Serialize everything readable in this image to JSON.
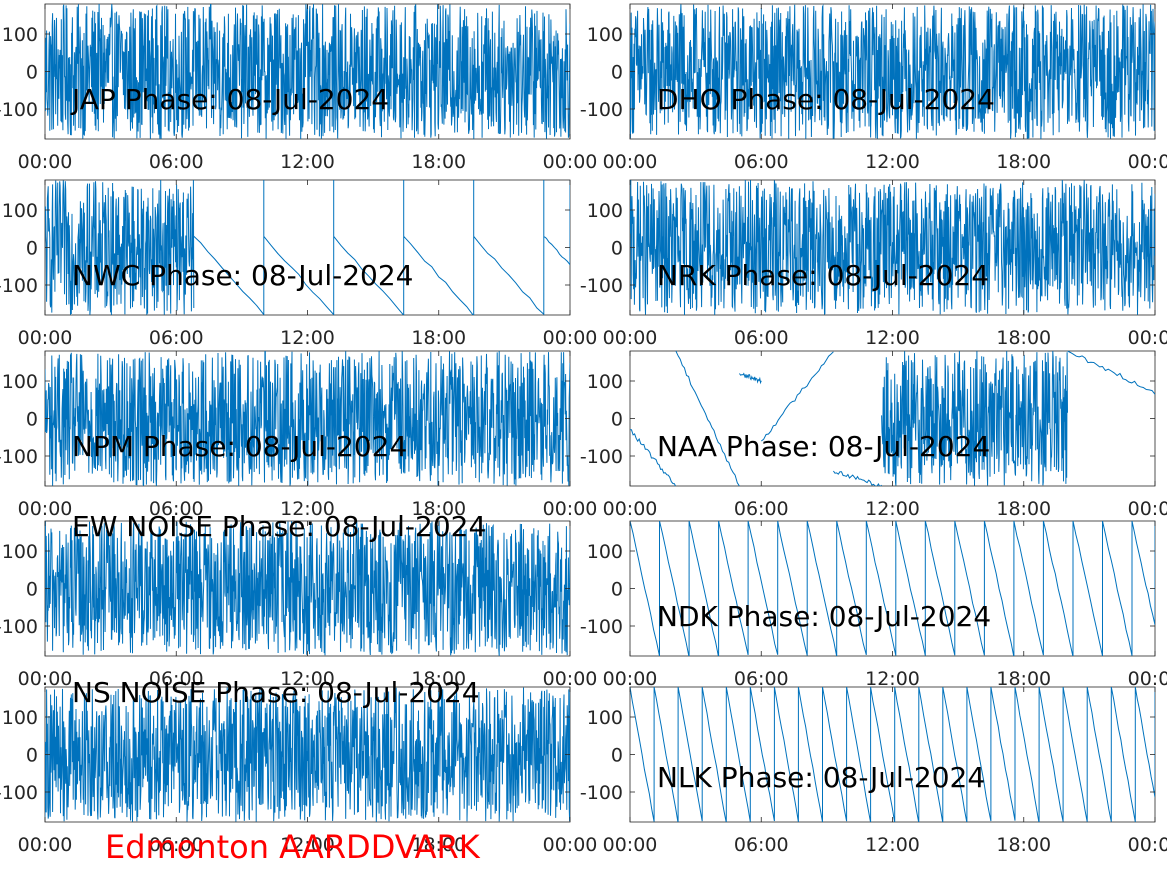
{
  "footer": {
    "label": "Edmonton AARDDVARK",
    "color": "#ff0000"
  },
  "line_color": "#0072bd",
  "chart_data": [
    {
      "type": "line",
      "title": "JAP Phase: 08-Jul-2024",
      "ylim": [
        -180,
        180
      ],
      "yticks": [
        "-100",
        "0",
        "100"
      ],
      "xticks": [
        "00:00",
        "06:00",
        "12:00",
        "18:00",
        "00:00"
      ],
      "x_range_hours": [
        0,
        24
      ],
      "pattern": [
        {
          "from": 0,
          "to": 24,
          "kind": "noise"
        }
      ]
    },
    {
      "type": "line",
      "title": "DHO Phase: 08-Jul-2024",
      "ylim": [
        -180,
        180
      ],
      "yticks": [
        "-100",
        "0",
        "100"
      ],
      "xticks": [
        "00:00",
        "06:00",
        "12:00",
        "18:00",
        "00:00"
      ],
      "x_range_hours": [
        0,
        24
      ],
      "pattern": [
        {
          "from": 0,
          "to": 24,
          "kind": "noise"
        }
      ]
    },
    {
      "type": "line",
      "title": "NWC Phase: 08-Jul-2024",
      "ylim": [
        -180,
        180
      ],
      "yticks": [
        "-100",
        "0",
        "100"
      ],
      "xticks": [
        "00:00",
        "06:00",
        "12:00",
        "18:00",
        "00:00"
      ],
      "x_range_hours": [
        0,
        24
      ],
      "pattern": [
        {
          "from": 0,
          "to": 6.8,
          "kind": "noise"
        },
        {
          "from": 6.8,
          "to": 24,
          "kind": "sawtooth",
          "period_hours": 3.2,
          "start_deg": 30,
          "end_deg": -180
        }
      ]
    },
    {
      "type": "line",
      "title": "NRK Phase: 08-Jul-2024",
      "ylim": [
        -180,
        180
      ],
      "yticks": [
        "-100",
        "0",
        "100"
      ],
      "xticks": [
        "00:00",
        "06:00",
        "12:00",
        "18:00",
        "00:00"
      ],
      "x_range_hours": [
        0,
        24
      ],
      "pattern": [
        {
          "from": 0,
          "to": 24,
          "kind": "noise"
        }
      ]
    },
    {
      "type": "line",
      "title": "NPM Phase: 08-Jul-2024",
      "ylim": [
        -180,
        180
      ],
      "yticks": [
        "-100",
        "0",
        "100"
      ],
      "xticks": [
        "00:00",
        "06:00",
        "12:00",
        "18:00",
        "00:00"
      ],
      "x_range_hours": [
        0,
        24
      ],
      "pattern": [
        {
          "from": 0,
          "to": 24,
          "kind": "noise"
        }
      ]
    },
    {
      "type": "line",
      "title": "NAA Phase: 08-Jul-2024",
      "ylim": [
        -180,
        180
      ],
      "yticks": [
        "-100",
        "0",
        "100"
      ],
      "xticks": [
        "00:00",
        "06:00",
        "12:00",
        "18:00",
        "00:00"
      ],
      "x_range_hours": [
        0,
        24
      ],
      "pattern": [
        {
          "from": 0,
          "to": 2.1,
          "kind": "drift",
          "start_deg": -30,
          "end_deg": -180
        },
        {
          "from": 2.1,
          "to": 5.0,
          "kind": "drift",
          "start_deg": 180,
          "end_deg": -180
        },
        {
          "from": 5.0,
          "to": 6.0,
          "kind": "drift",
          "start_deg": 120,
          "end_deg": 100
        },
        {
          "from": 6.0,
          "to": 9.3,
          "kind": "drift",
          "start_deg": -60,
          "end_deg": 180
        },
        {
          "from": 9.3,
          "to": 11.5,
          "kind": "drift",
          "start_deg": -140,
          "end_deg": -180
        },
        {
          "from": 11.5,
          "to": 20.0,
          "kind": "noise"
        },
        {
          "from": 20.0,
          "to": 24,
          "kind": "drift",
          "start_deg": 180,
          "end_deg": 70
        }
      ]
    },
    {
      "type": "line",
      "title": "EW NOISE Phase: 08-Jul-2024",
      "ylim": [
        -180,
        180
      ],
      "yticks": [
        "-100",
        "0",
        "100"
      ],
      "xticks": [
        "00:00",
        "06:00",
        "12:00",
        "18:00",
        "00:00"
      ],
      "x_range_hours": [
        0,
        24
      ],
      "pattern": [
        {
          "from": 0,
          "to": 24,
          "kind": "noise"
        }
      ]
    },
    {
      "type": "line",
      "title": "NDK Phase: 08-Jul-2024",
      "ylim": [
        -180,
        180
      ],
      "yticks": [
        "-100",
        "0",
        "100"
      ],
      "xticks": [
        "00:00",
        "06:00",
        "12:00",
        "18:00",
        "00:00"
      ],
      "x_range_hours": [
        0,
        24
      ],
      "pattern": [
        {
          "from": 0,
          "to": 24,
          "kind": "sawtooth",
          "period_hours": 1.35,
          "start_deg": 180,
          "end_deg": -180
        }
      ]
    },
    {
      "type": "line",
      "title": "NS NOISE Phase: 08-Jul-2024",
      "ylim": [
        -180,
        180
      ],
      "yticks": [
        "-100",
        "0",
        "100"
      ],
      "xticks": [
        "00:00",
        "06:00",
        "12:00",
        "18:00",
        "00:00"
      ],
      "x_range_hours": [
        0,
        24
      ],
      "pattern": [
        {
          "from": 0,
          "to": 24,
          "kind": "noise"
        }
      ]
    },
    {
      "type": "line",
      "title": "NLK Phase: 08-Jul-2024",
      "ylim": [
        -180,
        180
      ],
      "yticks": [
        "-100",
        "0",
        "100"
      ],
      "xticks": [
        "00:00",
        "06:00",
        "12:00",
        "18:00",
        "00:00"
      ],
      "x_range_hours": [
        0,
        24
      ],
      "pattern": [
        {
          "from": 0,
          "to": 24,
          "kind": "sawtooth",
          "period_hours": 1.1,
          "start_deg": 180,
          "end_deg": -180
        }
      ]
    }
  ]
}
